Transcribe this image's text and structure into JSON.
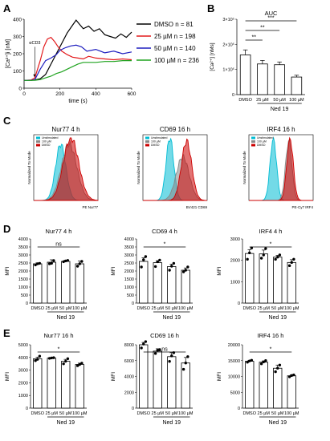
{
  "panel_labels": [
    "A",
    "B",
    "C",
    "D",
    "E"
  ],
  "chart_data": [
    {
      "id": "A",
      "type": "line",
      "ylabel": "[Ca²⁺]i [nM]",
      "xlabel": "time (s)",
      "xlim": [
        0,
        600
      ],
      "ylim": [
        0,
        400
      ],
      "xticks": [
        0,
        200,
        400,
        600
      ],
      "yticks": [
        0,
        100,
        200,
        300,
        400
      ],
      "annotation": "αCD3",
      "series": [
        {
          "name": "DMSO n = 81",
          "color": "#000000",
          "x": [
            0,
            40,
            60,
            90,
            120,
            150,
            180,
            210,
            240,
            270,
            290,
            310,
            330,
            360,
            390,
            420,
            450,
            480,
            510,
            540,
            570,
            600
          ],
          "y": [
            45,
            46,
            48,
            55,
            80,
            140,
            200,
            260,
            320,
            365,
            395,
            370,
            345,
            360,
            330,
            345,
            310,
            300,
            290,
            315,
            295,
            325
          ]
        },
        {
          "name": "25 µM n = 198",
          "color": "#e31a1c",
          "x": [
            0,
            40,
            60,
            90,
            110,
            130,
            150,
            170,
            190,
            210,
            240,
            270,
            300,
            330,
            360,
            400,
            450,
            500,
            550,
            600
          ],
          "y": [
            45,
            48,
            60,
            160,
            240,
            285,
            295,
            270,
            240,
            215,
            195,
            180,
            175,
            170,
            185,
            175,
            170,
            165,
            170,
            165
          ]
        },
        {
          "name": "50 µM n = 140",
          "color": "#1f1fbf",
          "x": [
            0,
            40,
            60,
            90,
            120,
            150,
            180,
            200,
            230,
            260,
            290,
            320,
            350,
            400,
            450,
            500,
            550,
            600
          ],
          "y": [
            45,
            46,
            50,
            110,
            160,
            175,
            195,
            220,
            235,
            245,
            250,
            240,
            215,
            225,
            205,
            215,
            200,
            210
          ]
        },
        {
          "name": "100 µM n = 236",
          "color": "#1fa31f",
          "x": [
            0,
            40,
            60,
            90,
            120,
            150,
            180,
            210,
            240,
            270,
            300,
            330,
            360,
            400,
            450,
            500,
            550,
            600
          ],
          "y": [
            45,
            45,
            46,
            50,
            60,
            70,
            85,
            95,
            110,
            125,
            140,
            150,
            150,
            150,
            155,
            155,
            160,
            160
          ]
        }
      ]
    },
    {
      "id": "B",
      "type": "bar",
      "title": "AUC",
      "ylabel": "[Ca²⁺] [nMs]",
      "categories": [
        "DMSO",
        "25 µM",
        "50 µM",
        "100 µM"
      ],
      "group_label": "Ned 19",
      "values": [
        158000,
        122000,
        119000,
        70000
      ],
      "errors": [
        20000,
        14000,
        11000,
        7000
      ],
      "ylim": [
        0,
        300000
      ],
      "ytick_labels": [
        "0",
        "1×10⁵",
        "2×10⁵",
        "3×10⁵"
      ],
      "ytick_values": [
        0,
        100000,
        200000,
        300000
      ],
      "significance": [
        {
          "from": 0,
          "to": 3,
          "label": "***"
        },
        {
          "from": 0,
          "to": 2,
          "label": "**"
        },
        {
          "from": 0,
          "to": 1,
          "label": "**"
        }
      ]
    },
    {
      "id": "C1",
      "type": "area",
      "title": "Nur77 4 h",
      "xlabel": "PE Nur77",
      "ylabel": "Normalized To Mode",
      "legend": [
        {
          "name": "Unstimulated",
          "color": "#00bcd4"
        },
        {
          "name": "100 µM",
          "color": "#888888"
        },
        {
          "name": "DMSO",
          "color": "#cc0000"
        }
      ]
    },
    {
      "id": "C2",
      "type": "area",
      "title": "CD69 16 h",
      "xlabel": "BV421 CD69",
      "ylabel": "Normalized To Mode",
      "legend": [
        {
          "name": "Unstimulated",
          "color": "#00bcd4"
        },
        {
          "name": "100 µM",
          "color": "#888888"
        },
        {
          "name": "DMSO",
          "color": "#cc0000"
        }
      ]
    },
    {
      "id": "C3",
      "type": "area",
      "title": "IRF4 16 h",
      "xlabel": "PE-Cy7 IRF4",
      "ylabel": "Normalized To Mode",
      "legend": [
        {
          "name": "Unstimulated",
          "color": "#00bcd4"
        },
        {
          "name": "100 µM",
          "color": "#888888"
        },
        {
          "name": "DMSO",
          "color": "#cc0000"
        }
      ]
    },
    {
      "id": "D1",
      "type": "bar",
      "title": "Nur77 4 h",
      "ylabel": "MFI",
      "categories": [
        "DMSO",
        "25 µM",
        "50 µM",
        "100 µM"
      ],
      "group_label": "Ned 19",
      "values": [
        2450,
        2550,
        2600,
        2450
      ],
      "errors": [
        60,
        150,
        60,
        170
      ],
      "points": [
        [
          2380,
          2450,
          2480
        ],
        [
          2450,
          2480,
          2650
        ],
        [
          2580,
          2630,
          2660
        ],
        [
          2300,
          2450,
          2600
        ]
      ],
      "ylim": [
        0,
        4000
      ],
      "yticks": [
        0,
        500,
        1000,
        1500,
        2000,
        2500,
        3000,
        3500,
        4000
      ],
      "significance": [
        {
          "from": 0,
          "to": 3,
          "label": "ns"
        }
      ]
    },
    {
      "id": "D2",
      "type": "bar",
      "title": "CD69 4 h",
      "ylabel": "MFI",
      "categories": [
        "DMSO",
        "25 µM",
        "50 µM",
        "100 µM"
      ],
      "group_label": "Ned 19",
      "values": [
        2600,
        2520,
        2280,
        2050
      ],
      "errors": [
        220,
        120,
        150,
        140
      ],
      "points": [
        [
          2250,
          2700,
          2900
        ],
        [
          2280,
          2580,
          2680
        ],
        [
          2050,
          2300,
          2480
        ],
        [
          1950,
          2050,
          2250
        ]
      ],
      "ylim": [
        0,
        4000
      ],
      "yticks": [
        0,
        500,
        1000,
        1500,
        2000,
        2500,
        3000,
        3500,
        4000
      ],
      "significance": [
        {
          "from": 0,
          "to": 3,
          "label": "*"
        }
      ]
    },
    {
      "id": "D3",
      "type": "bar",
      "title": "IRF4 4 h",
      "ylabel": "MFI",
      "categories": [
        "DMSO",
        "25 µM",
        "50 µM",
        "100 µM"
      ],
      "group_label": "Ned 19",
      "values": [
        2320,
        2300,
        2150,
        1900
      ],
      "errors": [
        180,
        180,
        80,
        130
      ],
      "points": [
        [
          2050,
          2350,
          2580
        ],
        [
          2100,
          2250,
          2550
        ],
        [
          2050,
          2150,
          2250
        ],
        [
          1750,
          1900,
          2050
        ]
      ],
      "ylim": [
        0,
        3000
      ],
      "yticks": [
        0,
        1000,
        2000,
        3000
      ],
      "significance": [
        {
          "from": 0,
          "to": 3,
          "label": "*"
        }
      ]
    },
    {
      "id": "E1",
      "type": "bar",
      "title": "Nur77 16 h",
      "ylabel": "MFI",
      "categories": [
        "DMSO",
        "25 µM",
        "50 µM",
        "100 µM"
      ],
      "group_label": "Ned 19",
      "values": [
        3900,
        3950,
        3700,
        3450
      ],
      "errors": [
        120,
        40,
        150,
        100
      ],
      "points": [
        [
          3750,
          3850,
          4100
        ],
        [
          3930,
          3960,
          3980
        ],
        [
          3500,
          3700,
          3900
        ],
        [
          3350,
          3450,
          3550
        ]
      ],
      "ylim": [
        0,
        5000
      ],
      "yticks": [
        0,
        1000,
        2000,
        3000,
        4000,
        5000
      ],
      "significance": [
        {
          "from": 0,
          "to": 3,
          "label": "*"
        }
      ]
    },
    {
      "id": "E2",
      "type": "bar",
      "title": "CD69 16 h",
      "ylabel": "MFI",
      "categories": [
        "DMSO",
        "25 µM",
        "50 µM",
        "100 µM"
      ],
      "group_label": "Ned 19",
      "values": [
        8000,
        7200,
        6500,
        5700
      ],
      "errors": [
        300,
        300,
        500,
        700
      ],
      "points": [
        [
          7600,
          8100,
          8400
        ],
        [
          6900,
          7300,
          7400
        ],
        [
          5900,
          6600,
          7000
        ],
        [
          4900,
          5700,
          6500
        ]
      ],
      "ylim": [
        0,
        8000
      ],
      "yticks": [
        0,
        2000,
        4000,
        6000,
        8000
      ],
      "significance": [
        {
          "from": 0,
          "to": 3,
          "label": "ns"
        }
      ]
    },
    {
      "id": "E3",
      "type": "bar",
      "title": "IRF4 16 h",
      "ylabel": "MFI",
      "categories": [
        "DMSO",
        "25 µM",
        "50 µM",
        "100 µM"
      ],
      "group_label": "Ned 19",
      "values": [
        14800,
        14500,
        12600,
        10200
      ],
      "errors": [
        300,
        400,
        1000,
        300
      ],
      "points": [
        [
          14500,
          14900,
          15100
        ],
        [
          14000,
          14600,
          15000
        ],
        [
          11500,
          12600,
          13600
        ],
        [
          9900,
          10300,
          10500
        ]
      ],
      "ylim": [
        0,
        20000
      ],
      "yticks": [
        0,
        5000,
        10000,
        15000,
        20000
      ],
      "significance": [
        {
          "from": 0,
          "to": 3,
          "label": "*"
        }
      ]
    }
  ]
}
